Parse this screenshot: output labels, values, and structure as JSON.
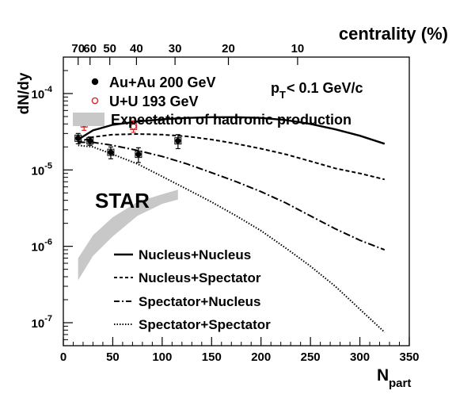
{
  "chart_data": {
    "type": "scatter",
    "xlabel_main": "N",
    "xlabel_sub": "part",
    "ylabel": "dN/dy",
    "top_axis_label": "centrality (%)",
    "xlim": [
      0,
      350
    ],
    "ylim": [
      5e-08,
      0.0003
    ],
    "yscale": "log",
    "x_ticks": [
      "0",
      "50",
      "100",
      "150",
      "200",
      "250",
      "300",
      "350"
    ],
    "y_ticks": [
      {
        "base": "10",
        "exp": "-7",
        "value": 1e-07
      },
      {
        "base": "10",
        "exp": "-6",
        "value": 1e-06
      },
      {
        "base": "10",
        "exp": "-5",
        "value": 1e-05
      },
      {
        "base": "10",
        "exp": "-4",
        "value": 0.0001
      }
    ],
    "top_ticks": [
      {
        "label": "70",
        "npart": 15
      },
      {
        "label": "60",
        "npart": 27
      },
      {
        "label": "50",
        "npart": 47
      },
      {
        "label": "40",
        "npart": 74
      },
      {
        "label": "30",
        "npart": 113
      },
      {
        "label": "20",
        "npart": 167
      },
      {
        "label": "10",
        "npart": 237
      }
    ],
    "annotation": {
      "main": "p",
      "sub": "T",
      "rest": " < 0.1 GeV/c"
    },
    "watermark": "STAR",
    "legend_top": [
      {
        "label": "Au+Au 200 GeV",
        "marker": "filled-circle",
        "color": "#000000"
      },
      {
        "label": "U+U 193 GeV",
        "marker": "open-circle",
        "color": "#d62728"
      },
      {
        "label": "Expectation of hadronic production",
        "marker": "band",
        "color": "#c8c8c8"
      }
    ],
    "legend_bottom": [
      {
        "label": "Nucleus+Nucleus",
        "style": "solid"
      },
      {
        "label": "Nucleus+Spectator",
        "style": "dashed"
      },
      {
        "label": "Spectator+Nucleus",
        "style": "dashdot"
      },
      {
        "label": "Spectator+Spectator",
        "style": "dotted"
      }
    ],
    "series": [
      {
        "name": "Au+Au 200 GeV",
        "kind": "points",
        "color": "#000000",
        "marker": "filled-circle",
        "points": [
          {
            "x": 15,
            "y": 2.6e-05,
            "ylo": 2.2e-05,
            "yhi": 3e-05
          },
          {
            "x": 27,
            "y": 2.4e-05,
            "ylo": 2.1e-05,
            "yhi": 2.7e-05
          },
          {
            "x": 48,
            "y": 1.7e-05,
            "ylo": 1.4e-05,
            "yhi": 2e-05
          },
          {
            "x": 76,
            "y": 1.6e-05,
            "ylo": 1.25e-05,
            "yhi": 1.95e-05
          },
          {
            "x": 116,
            "y": 2.4e-05,
            "ylo": 1.9e-05,
            "yhi": 2.9e-05
          }
        ]
      },
      {
        "name": "U+U 193 GeV",
        "kind": "points",
        "color": "#d62728",
        "marker": "open-circle",
        "points": [
          {
            "x": 21,
            "y": 4e-05,
            "ylo": 3.3e-05,
            "yhi": 4.8e-05
          },
          {
            "x": 71,
            "y": 3.7e-05,
            "ylo": 3.1e-05,
            "yhi": 4.4e-05
          }
        ]
      },
      {
        "name": "Nucleus+Nucleus",
        "kind": "line",
        "style": "solid",
        "x": [
          15,
          30,
          50,
          75,
          100,
          125,
          150,
          175,
          200,
          225,
          250,
          275,
          300,
          325
        ],
        "y": [
          2.5e-05,
          3.3e-05,
          3.9e-05,
          4.3e-05,
          4.6e-05,
          4.8e-05,
          4.9e-05,
          4.9e-05,
          4.8e-05,
          4.5e-05,
          4e-05,
          3.4e-05,
          2.8e-05,
          2.2e-05
        ]
      },
      {
        "name": "Nucleus+Spectator",
        "kind": "line",
        "style": "dashed",
        "x": [
          15,
          30,
          50,
          75,
          100,
          125,
          150,
          175,
          200,
          225,
          250,
          275,
          300,
          325
        ],
        "y": [
          2.3e-05,
          2.7e-05,
          2.9e-05,
          2.95e-05,
          2.9e-05,
          2.75e-05,
          2.5e-05,
          2.2e-05,
          1.9e-05,
          1.6e-05,
          1.3e-05,
          1.05e-05,
          9e-06,
          7.5e-06
        ]
      },
      {
        "name": "Spectator+Nucleus",
        "kind": "line",
        "style": "dashdot",
        "x": [
          15,
          30,
          50,
          75,
          100,
          125,
          150,
          175,
          200,
          225,
          250,
          275,
          300,
          325
        ],
        "y": [
          2.3e-05,
          2.3e-05,
          2.1e-05,
          1.8e-05,
          1.5e-05,
          1.2e-05,
          9.2e-06,
          7e-06,
          5.2e-06,
          3.7e-06,
          2.5e-06,
          1.7e-06,
          1.2e-06,
          9e-07
        ]
      },
      {
        "name": "Spectator+Spectator",
        "kind": "line",
        "style": "dotted",
        "x": [
          15,
          30,
          50,
          75,
          100,
          125,
          150,
          175,
          200,
          225,
          250,
          275,
          300,
          325
        ],
        "y": [
          2.1e-05,
          2e-05,
          1.6e-05,
          1.2e-05,
          8.2e-06,
          5.6e-06,
          3.8e-06,
          2.5e-06,
          1.6e-06,
          9.5e-07,
          5.5e-07,
          3e-07,
          1.5e-07,
          7.5e-08
        ]
      },
      {
        "name": "Expectation of hadronic production",
        "kind": "band",
        "color": "#c8c8c8",
        "x": [
          15,
          30,
          50,
          75,
          100,
          116
        ],
        "ylo": [
          3.6e-07,
          7.5e-07,
          1.35e-06,
          2.5e-06,
          3.6e-06,
          4.1e-06
        ],
        "yhi": [
          7e-07,
          1.4e-06,
          2.4e-06,
          3.8e-06,
          4.8e-06,
          5.5e-06
        ]
      }
    ]
  }
}
